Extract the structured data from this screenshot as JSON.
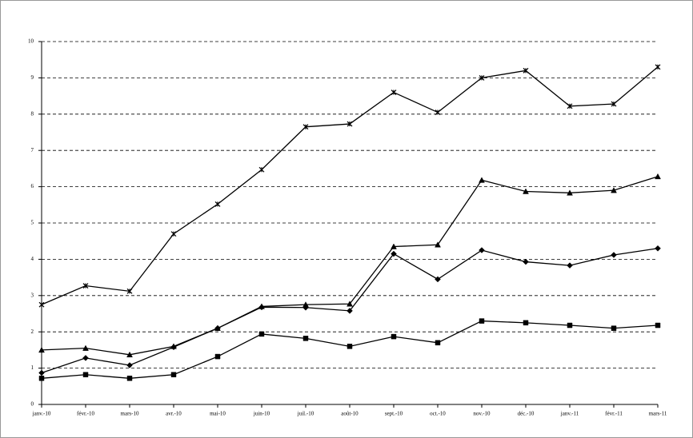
{
  "chart_data": {
    "type": "line",
    "categories": [
      "janv.-10",
      "févr.-10",
      "mars-10",
      "avr.-10",
      "mai-10",
      "juin-10",
      "juil.-10",
      "août-10",
      "sept.-10",
      "oct.-10",
      "nov.-10",
      "déc.-10",
      "janv.-11",
      "févr.-11",
      "mars-11"
    ],
    "series": [
      {
        "color": "#000000",
        "marker": "star",
        "values": [
          2.75,
          3.27,
          3.12,
          4.7,
          5.52,
          6.47,
          7.65,
          7.73,
          8.6,
          8.05,
          9.0,
          9.2,
          8.22,
          8.28,
          9.3
        ]
      },
      {
        "color": "#000000",
        "marker": "triangle",
        "values": [
          1.5,
          1.55,
          1.37,
          1.6,
          2.1,
          2.7,
          2.75,
          2.77,
          4.35,
          4.4,
          6.18,
          5.87,
          5.83,
          5.9,
          6.28
        ]
      },
      {
        "color": "#000000",
        "marker": "diamond",
        "values": [
          0.87,
          1.28,
          1.08,
          1.58,
          2.1,
          2.68,
          2.67,
          2.58,
          4.15,
          3.45,
          4.25,
          3.93,
          3.83,
          4.12,
          4.3
        ]
      },
      {
        "color": "#000000",
        "marker": "square",
        "values": [
          0.72,
          0.82,
          0.72,
          0.82,
          1.32,
          1.94,
          1.82,
          1.6,
          1.87,
          1.7,
          2.3,
          2.25,
          2.18,
          2.1,
          2.18
        ]
      }
    ],
    "ylim": [
      0,
      10
    ],
    "yticks": [
      0,
      1,
      2,
      3,
      4,
      5,
      6,
      7,
      8,
      9,
      10
    ],
    "grid": true
  }
}
